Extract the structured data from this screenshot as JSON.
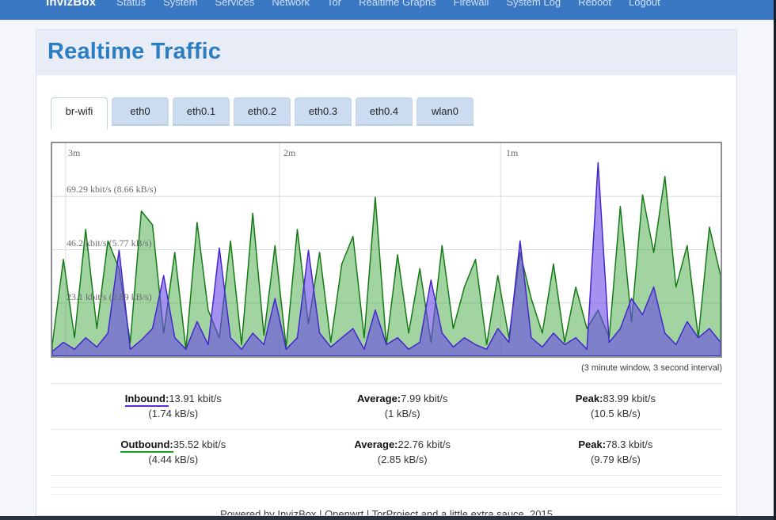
{
  "nav": {
    "brand": "InvizBox",
    "items": [
      {
        "label": "Status"
      },
      {
        "label": "System"
      },
      {
        "label": "Services"
      },
      {
        "label": "Network"
      },
      {
        "label": "Tor"
      },
      {
        "label": "Realtime Graphs"
      },
      {
        "label": "Firewall"
      },
      {
        "label": "System Log"
      },
      {
        "label": "Reboot"
      },
      {
        "label": "Logout"
      }
    ]
  },
  "page": {
    "title": "Realtime Traffic"
  },
  "tabs": [
    {
      "label": "br-wifi",
      "active": true
    },
    {
      "label": "eth0",
      "active": false
    },
    {
      "label": "eth0.1",
      "active": false
    },
    {
      "label": "eth0.2",
      "active": false
    },
    {
      "label": "eth0.3",
      "active": false
    },
    {
      "label": "eth0.4",
      "active": false
    },
    {
      "label": "wlan0",
      "active": false
    }
  ],
  "chart_data": {
    "type": "area",
    "title": "Realtime Traffic (br-wifi)",
    "time_markers": {
      "m3": "3m",
      "m2": "2m",
      "m1": "1m"
    },
    "y_ticks": {
      "t1": "69.29 kbit/s (8.66 kB/s)",
      "t2": "46.2 kbit/s (5.77 kB/s)",
      "t3": "23.1 kbit/s (2.89 kB/s)"
    },
    "y_tick_values": [
      69.29,
      46.2,
      23.1
    ],
    "ylim": [
      0,
      92.4
    ],
    "x_window_seconds": 180,
    "sample_interval_seconds": 3,
    "grid": {
      "h_fractions": [
        0.25,
        0.5,
        0.75
      ],
      "v_fractions": [
        0.02,
        0.34,
        0.671
      ]
    },
    "grid_color": "#dcdcdc",
    "interval_note": "(3 minute window, 3 second interval)",
    "series": [
      {
        "name": "Outbound",
        "stroke": "#157a15",
        "fill": "rgba(46,160,46,0.45)",
        "values": [
          5,
          42,
          8,
          55,
          12,
          50,
          38,
          6,
          63,
          57,
          10,
          45,
          3,
          58,
          20,
          8,
          50,
          5,
          62,
          9,
          48,
          4,
          55,
          14,
          45,
          6,
          40,
          52,
          8,
          69,
          5,
          44,
          10,
          38,
          6,
          48,
          12,
          30,
          42,
          5,
          35,
          8,
          45,
          25,
          10,
          40,
          6,
          30,
          12,
          20,
          8,
          65,
          15,
          70,
          45,
          78,
          30,
          48,
          8,
          56,
          35
        ]
      },
      {
        "name": "Inbound",
        "stroke": "#4426cc",
        "fill": "rgba(104,72,230,0.60)",
        "values": [
          2,
          6,
          3,
          8,
          4,
          10,
          46,
          3,
          7,
          12,
          35,
          8,
          3,
          15,
          5,
          47,
          8,
          3,
          10,
          5,
          25,
          3,
          8,
          46,
          10,
          4,
          8,
          12,
          3,
          20,
          5,
          8,
          3,
          6,
          33,
          10,
          4,
          8,
          5,
          3,
          12,
          6,
          50,
          8,
          4,
          10,
          5,
          8,
          3,
          84,
          6,
          12,
          25,
          18,
          30,
          10,
          5,
          15,
          8,
          12,
          6
        ]
      }
    ]
  },
  "stats": {
    "rows": [
      {
        "key": "Inbound:",
        "key_color": "#5b2bdd",
        "current": "13.91 kbit/s",
        "current_sub": "(1.74 kB/s)",
        "avg_label": "Average:",
        "average": "7.99 kbit/s",
        "average_sub": "(1 kB/s)",
        "peak_label": "Peak:",
        "peak": "83.99 kbit/s",
        "peak_sub": "(10.5 kB/s)"
      },
      {
        "key": "Outbound:",
        "key_color": "#1e9e1e",
        "current": "35.52 kbit/s",
        "current_sub": "(4.44 kB/s)",
        "avg_label": "Average:",
        "average": "22.76 kbit/s",
        "average_sub": "(2.85 kB/s)",
        "peak_label": "Peak:",
        "peak": "78.3 kbit/s",
        "peak_sub": "(9.79 kB/s)"
      }
    ]
  },
  "footer": {
    "text": "Powered by InvizBox | Openwrt | TorProject and a little extra sauce. 2015"
  }
}
